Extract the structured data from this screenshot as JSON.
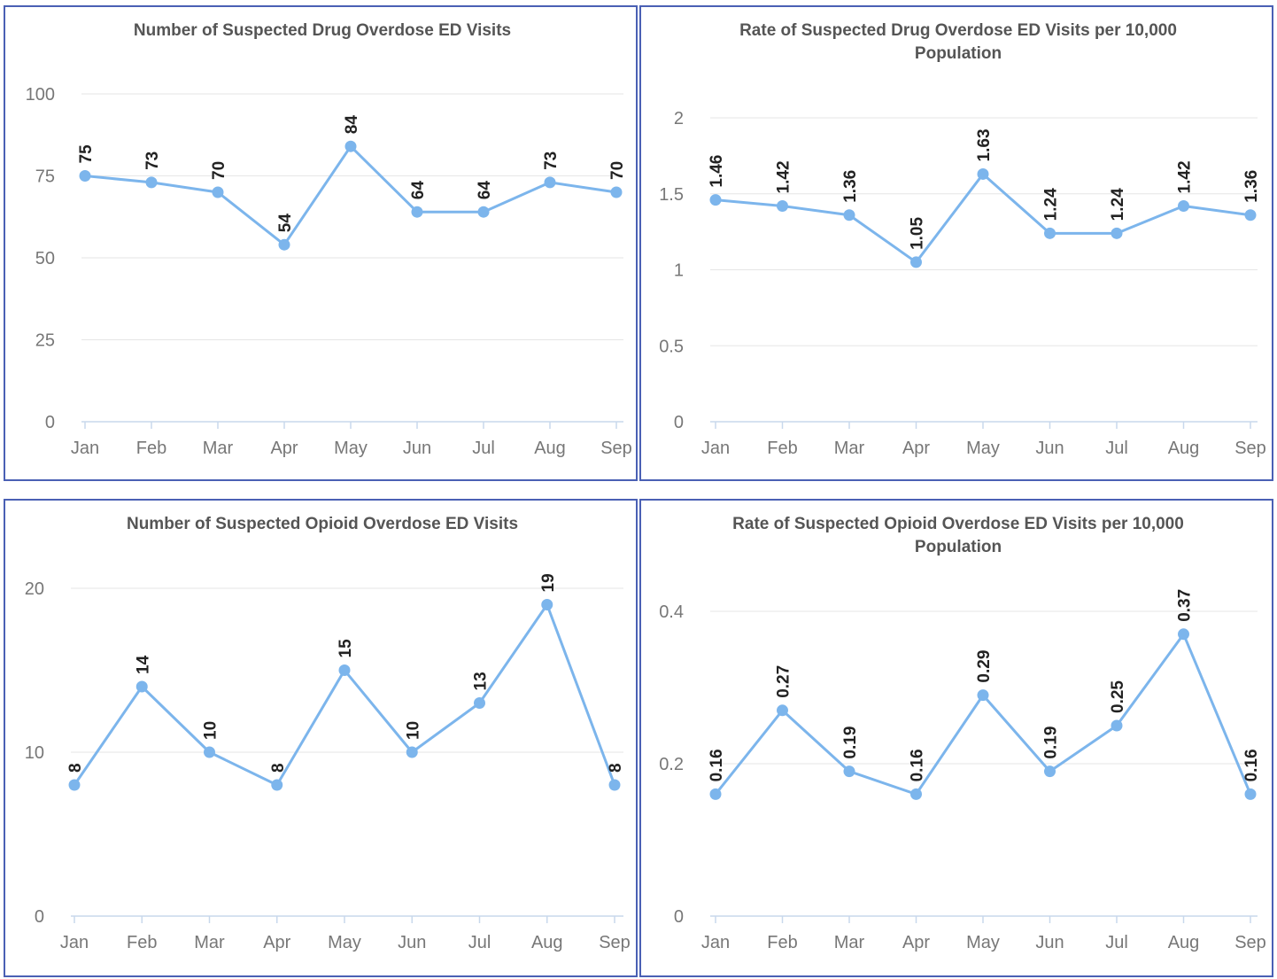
{
  "chart_data": [
    {
      "type": "line",
      "title": [
        "Number of Suspected Drug Overdose ED Visits"
      ],
      "categories": [
        "Jan",
        "Feb",
        "Mar",
        "Apr",
        "May",
        "Jun",
        "Jul",
        "Aug",
        "Sep"
      ],
      "values": [
        75,
        73,
        70,
        54,
        84,
        64,
        64,
        73,
        70
      ],
      "value_labels": [
        "75",
        "73",
        "70",
        "54",
        "84",
        "64",
        "64",
        "73",
        "70"
      ],
      "ylim": [
        0,
        100
      ],
      "yticks": [
        0,
        25,
        50,
        75,
        100
      ],
      "ytick_labels": [
        "0",
        "25",
        "50",
        "75",
        "100"
      ],
      "grid": true,
      "legend": "none",
      "color": "#7cb5ec"
    },
    {
      "type": "line",
      "title": [
        "Rate of Suspected Drug Overdose ED Visits per 10,000",
        "Population"
      ],
      "categories": [
        "Jan",
        "Feb",
        "Mar",
        "Apr",
        "May",
        "Jun",
        "Jul",
        "Aug",
        "Sep"
      ],
      "values": [
        1.46,
        1.42,
        1.36,
        1.05,
        1.63,
        1.24,
        1.24,
        1.42,
        1.36
      ],
      "value_labels": [
        "1.46",
        "1.42",
        "1.36",
        "1.05",
        "1.63",
        "1.24",
        "1.24",
        "1.42",
        "1.36"
      ],
      "ylim": [
        0,
        2
      ],
      "yticks": [
        0,
        0.5,
        1,
        1.5,
        2
      ],
      "ytick_labels": [
        "0",
        "0.5",
        "1",
        "1.5",
        "2"
      ],
      "grid": true,
      "legend": "none",
      "color": "#7cb5ec"
    },
    {
      "type": "line",
      "title": [
        "Number of Suspected Opioid Overdose ED Visits"
      ],
      "categories": [
        "Jan",
        "Feb",
        "Mar",
        "Apr",
        "May",
        "Jun",
        "Jul",
        "Aug",
        "Sep"
      ],
      "values": [
        8,
        14,
        10,
        8,
        15,
        10,
        13,
        19,
        8
      ],
      "value_labels": [
        "8",
        "14",
        "10",
        "8",
        "15",
        "10",
        "13",
        "19",
        "8"
      ],
      "ylim": [
        0,
        20
      ],
      "yticks": [
        0,
        10,
        20
      ],
      "ytick_labels": [
        "0",
        "10",
        "20"
      ],
      "grid": true,
      "legend": "none",
      "color": "#7cb5ec"
    },
    {
      "type": "line",
      "title": [
        "Rate of Suspected Opioid Overdose ED Visits per 10,000",
        "Population"
      ],
      "categories": [
        "Jan",
        "Feb",
        "Mar",
        "Apr",
        "May",
        "Jun",
        "Jul",
        "Aug",
        "Sep"
      ],
      "values": [
        0.16,
        0.27,
        0.19,
        0.16,
        0.29,
        0.19,
        0.25,
        0.37,
        0.16
      ],
      "value_labels": [
        "0.16",
        "0.27",
        "0.19",
        "0.16",
        "0.29",
        "0.19",
        "0.25",
        "0.37",
        "0.16"
      ],
      "ylim": [
        0,
        0.4
      ],
      "yticks": [
        0,
        0.2,
        0.4
      ],
      "ytick_labels": [
        "0",
        "0.2",
        "0.4"
      ],
      "grid": true,
      "legend": "none",
      "color": "#7cb5ec"
    }
  ]
}
